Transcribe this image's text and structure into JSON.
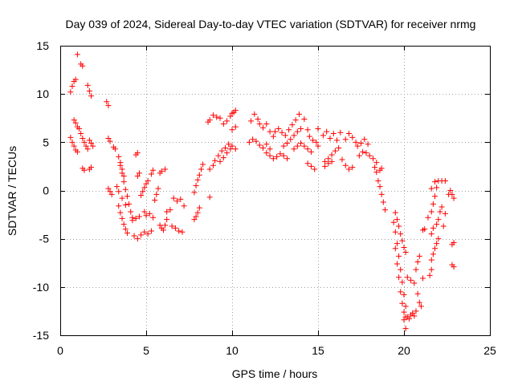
{
  "chart_data": {
    "type": "scatter",
    "title": "Day 039 of 2024, Sidereal Day-to-day VTEC variation (SDTVAR) for receiver nrmg",
    "xlabel": "GPS time / hours",
    "ylabel": "SDTVAR / TECUs",
    "xlim": [
      0,
      25
    ],
    "ylim": [
      -15,
      15
    ],
    "xticks": [
      0,
      5,
      10,
      15,
      20,
      25
    ],
    "yticks": [
      -15,
      -10,
      -5,
      0,
      5,
      10,
      15
    ],
    "xtick_labels": [
      "0",
      "5",
      "10",
      "15",
      "20",
      "25"
    ],
    "ytick_labels": [
      "-15",
      "-10",
      "-5",
      "0",
      "5",
      "10",
      "15"
    ],
    "grid": true,
    "marker": "+",
    "color": "#ff0000",
    "series": [
      {
        "name": "SDTVAR",
        "points": [
          [
            0.6,
            10.2
          ],
          [
            0.7,
            10.8
          ],
          [
            0.8,
            11.3
          ],
          [
            0.9,
            11.5
          ],
          [
            1.0,
            14.1
          ],
          [
            1.2,
            13.1
          ],
          [
            1.3,
            12.9
          ],
          [
            1.6,
            10.9
          ],
          [
            1.7,
            10.3
          ],
          [
            1.8,
            9.8
          ],
          [
            0.6,
            5.5
          ],
          [
            0.7,
            5.0
          ],
          [
            0.8,
            4.6
          ],
          [
            0.9,
            4.2
          ],
          [
            1.0,
            4.0
          ],
          [
            0.8,
            7.3
          ],
          [
            0.9,
            7.0
          ],
          [
            1.0,
            6.6
          ],
          [
            1.1,
            6.4
          ],
          [
            1.2,
            5.9
          ],
          [
            1.3,
            5.4
          ],
          [
            1.4,
            5.0
          ],
          [
            1.5,
            4.6
          ],
          [
            1.6,
            4.3
          ],
          [
            1.7,
            5.2
          ],
          [
            1.8,
            4.9
          ],
          [
            1.9,
            4.6
          ],
          [
            1.3,
            2.3
          ],
          [
            1.4,
            2.1
          ],
          [
            1.7,
            2.2
          ],
          [
            1.8,
            2.4
          ],
          [
            2.7,
            9.2
          ],
          [
            2.8,
            8.8
          ],
          [
            2.8,
            5.4
          ],
          [
            2.9,
            5.1
          ],
          [
            2.8,
            0.2
          ],
          [
            2.9,
            -0.1
          ],
          [
            3.0,
            -0.4
          ],
          [
            3.1,
            4.5
          ],
          [
            3.2,
            4.3
          ],
          [
            3.4,
            3.5
          ],
          [
            3.5,
            2.9
          ],
          [
            3.6,
            2.2
          ],
          [
            3.7,
            1.5
          ],
          [
            3.5,
            2.6
          ],
          [
            3.6,
            1.8
          ],
          [
            3.7,
            0.9
          ],
          [
            3.8,
            0.1
          ],
          [
            3.9,
            -0.6
          ],
          [
            4.0,
            -1.4
          ],
          [
            4.1,
            -2.2
          ],
          [
            4.2,
            -3.1
          ],
          [
            3.4,
            -1.6
          ],
          [
            3.5,
            -2.3
          ],
          [
            3.6,
            -2.9
          ],
          [
            3.7,
            -3.5
          ],
          [
            3.8,
            -4.0
          ],
          [
            3.9,
            -4.4
          ],
          [
            3.3,
            0.4
          ],
          [
            3.4,
            -0.1
          ],
          [
            3.6,
            -0.8
          ],
          [
            3.8,
            -1.5
          ],
          [
            4.2,
            -2.8
          ],
          [
            4.4,
            -2.9
          ],
          [
            4.6,
            -2.7
          ],
          [
            4.3,
            -4.7
          ],
          [
            4.5,
            -5.0
          ],
          [
            4.7,
            -4.6
          ],
          [
            4.9,
            -4.3
          ],
          [
            5.1,
            -4.5
          ],
          [
            5.3,
            -4.2
          ],
          [
            4.5,
            1.5
          ],
          [
            4.6,
            1.8
          ],
          [
            4.4,
            3.7
          ],
          [
            4.5,
            3.9
          ],
          [
            4.7,
            -0.5
          ],
          [
            4.8,
            -0.1
          ],
          [
            4.9,
            0.3
          ],
          [
            5.0,
            0.7
          ],
          [
            5.1,
            1.0
          ],
          [
            5.3,
            1.7
          ],
          [
            5.4,
            2.1
          ],
          [
            4.9,
            -2.2
          ],
          [
            5.0,
            -2.6
          ],
          [
            5.2,
            -2.4
          ],
          [
            5.4,
            -2.8
          ],
          [
            5.5,
            -1.0
          ],
          [
            5.6,
            -0.4
          ],
          [
            5.7,
            0.2
          ],
          [
            5.8,
            1.8
          ],
          [
            5.9,
            2.0
          ],
          [
            6.1,
            2.2
          ],
          [
            5.8,
            -3.6
          ],
          [
            5.9,
            -3.9
          ],
          [
            6.0,
            -4.1
          ],
          [
            6.1,
            -3.6
          ],
          [
            6.2,
            -3.0
          ],
          [
            6.2,
            -2.2
          ],
          [
            6.4,
            -2.0
          ],
          [
            6.5,
            -3.7
          ],
          [
            6.7,
            -3.9
          ],
          [
            6.9,
            -4.2
          ],
          [
            7.1,
            -4.3
          ],
          [
            6.6,
            -0.8
          ],
          [
            6.8,
            -1.1
          ],
          [
            7.0,
            -0.9
          ],
          [
            7.2,
            -1.6
          ],
          [
            7.8,
            -3.0
          ],
          [
            7.9,
            -2.7
          ],
          [
            8.0,
            -2.3
          ],
          [
            8.1,
            -1.8
          ],
          [
            7.8,
            -0.2
          ],
          [
            7.9,
            0.5
          ],
          [
            8.0,
            1.1
          ],
          [
            8.1,
            1.6
          ],
          [
            8.2,
            2.2
          ],
          [
            8.3,
            2.7
          ],
          [
            8.7,
            -0.7
          ],
          [
            8.6,
            7.1
          ],
          [
            8.7,
            7.3
          ],
          [
            8.9,
            7.8
          ],
          [
            9.1,
            7.6
          ],
          [
            9.3,
            7.5
          ],
          [
            9.5,
            6.9
          ],
          [
            9.7,
            7.2
          ],
          [
            8.7,
            2.2
          ],
          [
            8.9,
            2.6
          ],
          [
            9.0,
            3.1
          ],
          [
            9.2,
            3.6
          ],
          [
            9.4,
            4.1
          ],
          [
            9.6,
            4.4
          ],
          [
            9.8,
            4.8
          ],
          [
            9.3,
            3.0
          ],
          [
            9.5,
            3.4
          ],
          [
            9.7,
            3.9
          ],
          [
            9.9,
            4.3
          ],
          [
            10.0,
            4.6
          ],
          [
            10.2,
            4.3
          ],
          [
            9.9,
            7.7
          ],
          [
            10.0,
            8.0
          ],
          [
            10.1,
            8.1
          ],
          [
            10.2,
            8.3
          ],
          [
            10.0,
            6.3
          ],
          [
            10.2,
            6.6
          ],
          [
            11.1,
            7.2
          ],
          [
            11.3,
            7.9
          ],
          [
            11.5,
            7.4
          ],
          [
            11.6,
            6.9
          ],
          [
            11.8,
            6.5
          ],
          [
            12.0,
            6.9
          ],
          [
            12.2,
            6.1
          ],
          [
            12.4,
            5.6
          ],
          [
            11.0,
            5.0
          ],
          [
            11.2,
            5.3
          ],
          [
            11.4,
            5.1
          ],
          [
            11.6,
            4.7
          ],
          [
            11.8,
            4.4
          ],
          [
            12.0,
            4.8
          ],
          [
            12.2,
            4.3
          ],
          [
            12.0,
            3.9
          ],
          [
            12.2,
            3.6
          ],
          [
            12.4,
            3.3
          ],
          [
            12.6,
            3.5
          ],
          [
            12.8,
            3.8
          ],
          [
            13.0,
            3.6
          ],
          [
            13.2,
            3.3
          ],
          [
            12.5,
            6.1
          ],
          [
            12.7,
            6.4
          ],
          [
            12.9,
            6.0
          ],
          [
            13.1,
            5.7
          ],
          [
            13.3,
            6.3
          ],
          [
            13.5,
            6.8
          ],
          [
            13.7,
            7.3
          ],
          [
            13.9,
            7.9
          ],
          [
            13.0,
            4.6
          ],
          [
            13.2,
            4.9
          ],
          [
            13.4,
            5.3
          ],
          [
            13.6,
            5.7
          ],
          [
            13.8,
            6.1
          ],
          [
            14.0,
            6.4
          ],
          [
            13.6,
            4.3
          ],
          [
            13.8,
            4.6
          ],
          [
            14.0,
            4.9
          ],
          [
            14.2,
            4.6
          ],
          [
            14.4,
            4.3
          ],
          [
            14.6,
            4.0
          ],
          [
            14.2,
            7.4
          ],
          [
            14.4,
            6.3
          ],
          [
            14.5,
            5.6
          ],
          [
            14.7,
            5.2
          ],
          [
            14.9,
            5.0
          ],
          [
            14.4,
            2.8
          ],
          [
            14.6,
            2.5
          ],
          [
            14.8,
            2.2
          ],
          [
            15.0,
            4.6
          ],
          [
            15.0,
            6.4
          ],
          [
            15.3,
            5.7
          ],
          [
            15.5,
            6.1
          ],
          [
            15.7,
            5.4
          ],
          [
            15.9,
            5.9
          ],
          [
            16.1,
            5.2
          ],
          [
            16.3,
            6.0
          ],
          [
            15.4,
            3.0
          ],
          [
            15.6,
            3.3
          ],
          [
            15.8,
            3.7
          ],
          [
            16.0,
            4.1
          ],
          [
            16.2,
            4.4
          ],
          [
            15.4,
            2.5
          ],
          [
            15.6,
            2.8
          ],
          [
            15.8,
            3.0
          ],
          [
            16.4,
            3.2
          ],
          [
            16.6,
            2.6
          ],
          [
            16.8,
            2.2
          ],
          [
            17.0,
            2.4
          ],
          [
            16.6,
            5.3
          ],
          [
            16.8,
            5.9
          ],
          [
            17.0,
            5.5
          ],
          [
            17.2,
            5.0
          ],
          [
            17.3,
            4.6
          ],
          [
            17.5,
            4.9
          ],
          [
            17.7,
            5.3
          ],
          [
            17.9,
            4.8
          ],
          [
            17.4,
            3.6
          ],
          [
            17.6,
            4.0
          ],
          [
            17.8,
            3.9
          ],
          [
            18.0,
            3.6
          ],
          [
            18.2,
            3.3
          ],
          [
            18.4,
            2.9
          ],
          [
            18.3,
            2.4
          ],
          [
            18.4,
            1.9
          ],
          [
            18.6,
            2.1
          ],
          [
            18.7,
            2.3
          ],
          [
            18.5,
            1.0
          ],
          [
            18.6,
            0.4
          ],
          [
            18.7,
            -0.4
          ],
          [
            18.8,
            -1.2
          ],
          [
            18.9,
            -2.0
          ],
          [
            19.5,
            -2.3
          ],
          [
            19.6,
            -3.0
          ],
          [
            19.7,
            -3.7
          ],
          [
            19.8,
            -4.5
          ],
          [
            19.9,
            -5.2
          ],
          [
            20.0,
            -5.9
          ],
          [
            20.1,
            -6.4
          ],
          [
            19.4,
            -3.3
          ],
          [
            19.5,
            -4.3
          ],
          [
            19.6,
            -5.5
          ],
          [
            19.7,
            -6.8
          ],
          [
            19.8,
            -8.2
          ],
          [
            19.9,
            -9.5
          ],
          [
            20.0,
            -10.8
          ],
          [
            20.1,
            -12.0
          ],
          [
            19.5,
            -6.0
          ],
          [
            19.6,
            -7.6
          ],
          [
            19.7,
            -9.0
          ],
          [
            19.8,
            -10.5
          ],
          [
            19.9,
            -11.7
          ],
          [
            20.0,
            -12.6
          ],
          [
            20.1,
            -13.1
          ],
          [
            20.2,
            -13.1
          ],
          [
            20.3,
            -13.3
          ],
          [
            20.4,
            -12.9
          ],
          [
            20.5,
            -12.7
          ],
          [
            20.6,
            -13.0
          ],
          [
            20.7,
            -12.5
          ],
          [
            20.0,
            -13.4
          ],
          [
            20.1,
            -14.3
          ],
          [
            20.2,
            -9.0
          ],
          [
            20.4,
            -9.3
          ],
          [
            20.6,
            -9.6
          ],
          [
            20.7,
            -8.2
          ],
          [
            20.8,
            -7.4
          ],
          [
            20.9,
            -6.8
          ],
          [
            20.8,
            -10.7
          ],
          [
            20.9,
            -11.6
          ],
          [
            21.0,
            -12.0
          ],
          [
            21.1,
            -9.1
          ],
          [
            21.1,
            -4.1
          ],
          [
            21.2,
            -4.0
          ],
          [
            21.4,
            -2.8
          ],
          [
            21.6,
            -2.2
          ],
          [
            21.7,
            -1.4
          ],
          [
            21.8,
            -0.6
          ],
          [
            21.9,
            0.3
          ],
          [
            21.6,
            -4.5
          ],
          [
            21.7,
            -3.9
          ],
          [
            21.9,
            -3.5
          ],
          [
            22.0,
            -3.0
          ],
          [
            22.1,
            -2.2
          ],
          [
            22.2,
            -1.7
          ],
          [
            21.6,
            -7.2
          ],
          [
            21.7,
            -6.6
          ],
          [
            21.8,
            -6.0
          ],
          [
            21.9,
            -5.5
          ],
          [
            22.0,
            -5.0
          ],
          [
            21.5,
            -8.8
          ],
          [
            21.6,
            -8.2
          ],
          [
            21.6,
            0.2
          ],
          [
            21.8,
            0.9
          ],
          [
            22.0,
            1.0
          ],
          [
            22.2,
            1.0
          ],
          [
            22.4,
            1.0
          ],
          [
            22.3,
            -3.7
          ],
          [
            22.4,
            -2.4
          ],
          [
            22.6,
            -0.4
          ],
          [
            22.7,
            0.0
          ],
          [
            22.8,
            -0.4
          ],
          [
            22.9,
            -0.8
          ],
          [
            22.8,
            -5.6
          ],
          [
            22.9,
            -5.4
          ],
          [
            22.8,
            -7.7
          ],
          [
            22.9,
            -7.9
          ]
        ]
      }
    ]
  }
}
